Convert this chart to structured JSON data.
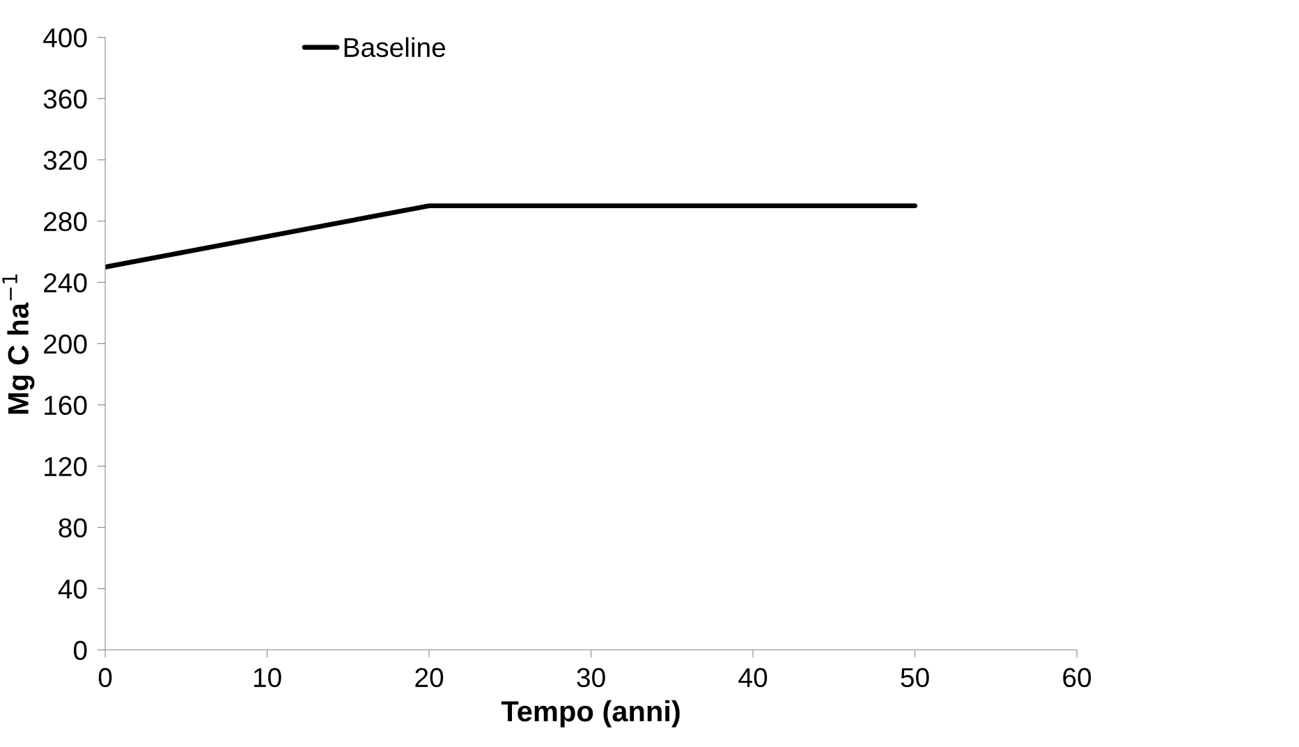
{
  "chart_data": {
    "type": "line",
    "xlabel": "Tempo (anni)",
    "ylabel": "Mg C ha$^{−1}$",
    "xlim": [
      0,
      60
    ],
    "xticks": [
      0,
      10,
      20,
      30,
      40,
      50,
      60
    ],
    "ylim": [
      0,
      400
    ],
    "yticks": [
      0,
      40,
      80,
      120,
      160,
      200,
      240,
      280,
      320,
      360,
      400
    ],
    "x": [
      0,
      5,
      10,
      15,
      20,
      25,
      30,
      35,
      40,
      45,
      50
    ],
    "series": [
      {
        "name": "Baseline",
        "color": "#000000",
        "values": [
          250,
          260,
          270,
          280,
          290,
          290,
          290,
          290,
          290,
          290,
          290
        ]
      }
    ],
    "legend": "top left",
    "grid": false,
    "marker": "none",
    "line_style": "solid"
  }
}
